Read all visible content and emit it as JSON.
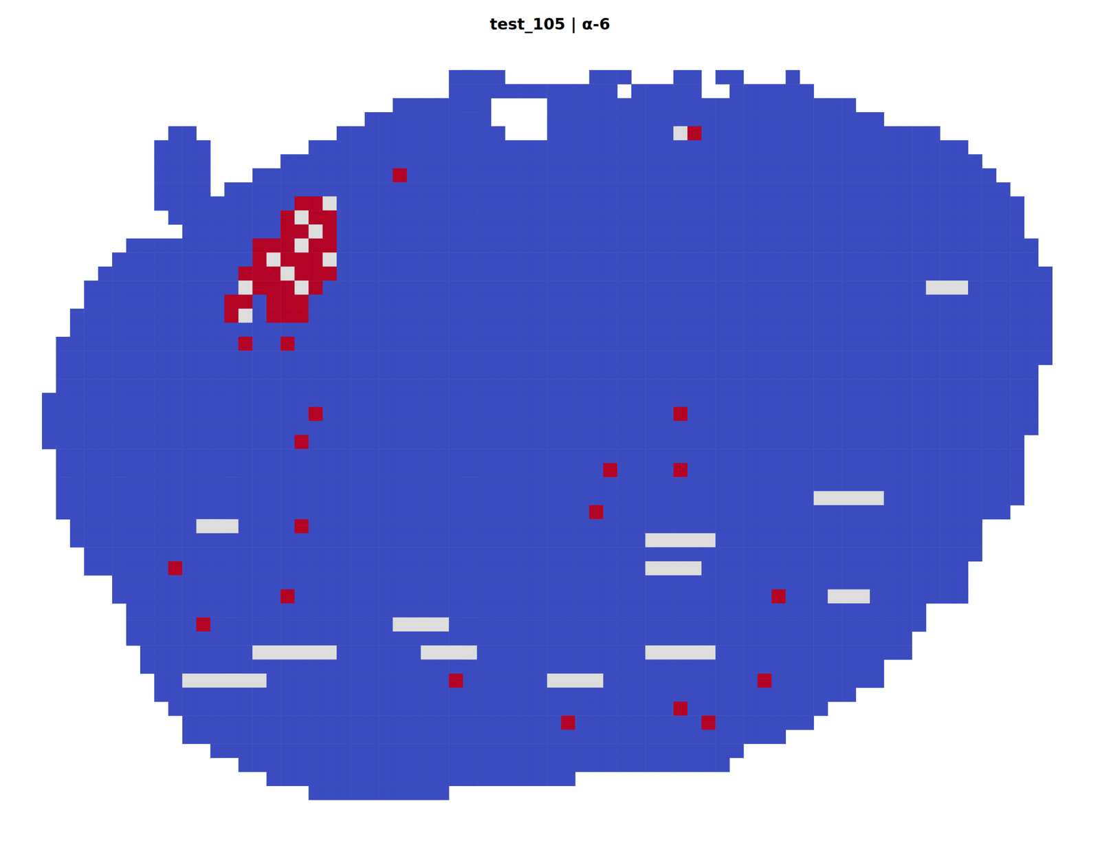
{
  "chart_data": {
    "type": "heatmap",
    "title": "test_105 | α-6",
    "xlim": [
      0,
      78
    ],
    "ylim": [
      0,
      58
    ],
    "tick_labels": false,
    "grid": false,
    "value_range": [
      0,
      1
    ],
    "tissue_spans": [
      [
        5,
        32,
        35
      ],
      [
        5,
        42,
        44
      ],
      [
        5,
        48,
        49
      ],
      [
        5,
        51,
        52
      ],
      [
        5,
        56,
        56
      ],
      [
        6,
        32,
        43
      ],
      [
        6,
        45,
        49
      ],
      [
        6,
        52,
        57
      ],
      [
        7,
        28,
        34
      ],
      [
        7,
        39,
        60
      ],
      [
        8,
        26,
        34
      ],
      [
        8,
        39,
        62
      ],
      [
        9,
        12,
        13
      ],
      [
        9,
        24,
        35
      ],
      [
        9,
        39,
        66
      ],
      [
        10,
        11,
        14
      ],
      [
        10,
        22,
        68
      ],
      [
        11,
        11,
        14
      ],
      [
        11,
        20,
        69
      ],
      [
        12,
        11,
        14
      ],
      [
        12,
        18,
        70
      ],
      [
        13,
        11,
        14
      ],
      [
        13,
        16,
        71
      ],
      [
        14,
        11,
        14
      ],
      [
        14,
        15,
        72
      ],
      [
        15,
        12,
        72
      ],
      [
        16,
        13,
        72
      ],
      [
        17,
        9,
        10
      ],
      [
        17,
        11,
        73
      ],
      [
        18,
        8,
        73
      ],
      [
        19,
        7,
        74
      ],
      [
        20,
        6,
        74
      ],
      [
        21,
        6,
        74
      ],
      [
        22,
        5,
        74
      ],
      [
        23,
        5,
        74
      ],
      [
        24,
        4,
        74
      ],
      [
        25,
        4,
        74
      ],
      [
        26,
        4,
        73
      ],
      [
        27,
        4,
        73
      ],
      [
        28,
        3,
        73
      ],
      [
        29,
        3,
        73
      ],
      [
        30,
        3,
        73
      ],
      [
        31,
        3,
        72
      ],
      [
        32,
        4,
        72
      ],
      [
        33,
        4,
        72
      ],
      [
        34,
        4,
        72
      ],
      [
        35,
        4,
        72
      ],
      [
        36,
        4,
        71
      ],
      [
        37,
        5,
        69
      ],
      [
        38,
        5,
        69
      ],
      [
        39,
        6,
        69
      ],
      [
        40,
        6,
        68
      ],
      [
        41,
        8,
        68
      ],
      [
        42,
        8,
        68
      ],
      [
        43,
        9,
        65
      ],
      [
        44,
        9,
        65
      ],
      [
        45,
        9,
        64
      ],
      [
        46,
        10,
        64
      ],
      [
        47,
        10,
        62
      ],
      [
        48,
        11,
        62
      ],
      [
        49,
        11,
        60
      ],
      [
        50,
        12,
        58
      ],
      [
        51,
        13,
        57
      ],
      [
        52,
        13,
        55
      ],
      [
        53,
        15,
        52
      ],
      [
        54,
        17,
        51
      ],
      [
        55,
        19,
        40
      ],
      [
        56,
        22,
        31
      ]
    ],
    "cells": [
      [
        21,
        14,
        1
      ],
      [
        22,
        14,
        1
      ],
      [
        23,
        14,
        0.5
      ],
      [
        20,
        15,
        1
      ],
      [
        21,
        15,
        0.5
      ],
      [
        22,
        15,
        1
      ],
      [
        23,
        15,
        1
      ],
      [
        20,
        16,
        1
      ],
      [
        21,
        16,
        1
      ],
      [
        22,
        16,
        0.5
      ],
      [
        23,
        16,
        1
      ],
      [
        18,
        17,
        1
      ],
      [
        19,
        17,
        1
      ],
      [
        20,
        17,
        1
      ],
      [
        21,
        17,
        0.5
      ],
      [
        22,
        17,
        1
      ],
      [
        23,
        17,
        1
      ],
      [
        18,
        18,
        1
      ],
      [
        19,
        18,
        0.5
      ],
      [
        20,
        18,
        1
      ],
      [
        21,
        18,
        1
      ],
      [
        22,
        18,
        1
      ],
      [
        23,
        18,
        0.5
      ],
      [
        17,
        19,
        1
      ],
      [
        18,
        19,
        1
      ],
      [
        19,
        19,
        1
      ],
      [
        20,
        19,
        0.5
      ],
      [
        21,
        19,
        1
      ],
      [
        22,
        19,
        1
      ],
      [
        23,
        19,
        1
      ],
      [
        17,
        20,
        0.5
      ],
      [
        18,
        20,
        1
      ],
      [
        19,
        20,
        1
      ],
      [
        20,
        20,
        1
      ],
      [
        21,
        20,
        0.5
      ],
      [
        22,
        20,
        1
      ],
      [
        16,
        21,
        1
      ],
      [
        17,
        21,
        1
      ],
      [
        19,
        21,
        1
      ],
      [
        20,
        21,
        1
      ],
      [
        21,
        21,
        1
      ],
      [
        16,
        22,
        1
      ],
      [
        17,
        22,
        0.5
      ],
      [
        19,
        22,
        1
      ],
      [
        20,
        22,
        1
      ],
      [
        21,
        22,
        1
      ],
      [
        17,
        24,
        1
      ],
      [
        20,
        24,
        1
      ],
      [
        28,
        12,
        1
      ],
      [
        48,
        9,
        0.5
      ],
      [
        49,
        9,
        1
      ],
      [
        48,
        29,
        1
      ],
      [
        21,
        31,
        1
      ],
      [
        22,
        29,
        1
      ],
      [
        48,
        33,
        1
      ],
      [
        43,
        33,
        1
      ],
      [
        42,
        36,
        1
      ],
      [
        14,
        44,
        1
      ],
      [
        20,
        42,
        1
      ],
      [
        21,
        37,
        1
      ],
      [
        48,
        50,
        1
      ],
      [
        50,
        51,
        1
      ],
      [
        54,
        48,
        1
      ],
      [
        55,
        42,
        1
      ],
      [
        12,
        40,
        1
      ],
      [
        32,
        48,
        1
      ],
      [
        40,
        51,
        1
      ],
      [
        14,
        37,
        0.5
      ],
      [
        15,
        37,
        0.5
      ],
      [
        16,
        37,
        0.5
      ],
      [
        46,
        38,
        0.5
      ],
      [
        47,
        38,
        0.5
      ],
      [
        48,
        38,
        0.5
      ],
      [
        49,
        38,
        0.5
      ],
      [
        50,
        38,
        0.5
      ],
      [
        46,
        40,
        0.5
      ],
      [
        47,
        40,
        0.5
      ],
      [
        48,
        40,
        0.5
      ],
      [
        49,
        40,
        0.5
      ],
      [
        46,
        46,
        0.5
      ],
      [
        47,
        46,
        0.5
      ],
      [
        48,
        46,
        0.5
      ],
      [
        49,
        46,
        0.5
      ],
      [
        50,
        46,
        0.5
      ],
      [
        30,
        46,
        0.5
      ],
      [
        31,
        46,
        0.5
      ],
      [
        32,
        46,
        0.5
      ],
      [
        33,
        46,
        0.5
      ],
      [
        28,
        44,
        0.5
      ],
      [
        29,
        44,
        0.5
      ],
      [
        30,
        44,
        0.5
      ],
      [
        31,
        44,
        0.5
      ],
      [
        39,
        48,
        0.5
      ],
      [
        40,
        48,
        0.5
      ],
      [
        41,
        48,
        0.5
      ],
      [
        42,
        48,
        0.5
      ],
      [
        13,
        48,
        0.5
      ],
      [
        14,
        48,
        0.5
      ],
      [
        15,
        48,
        0.5
      ],
      [
        16,
        48,
        0.5
      ],
      [
        17,
        48,
        0.5
      ],
      [
        18,
        48,
        0.5
      ],
      [
        18,
        46,
        0.5
      ],
      [
        19,
        46,
        0.5
      ],
      [
        20,
        46,
        0.5
      ],
      [
        21,
        46,
        0.5
      ],
      [
        22,
        46,
        0.5
      ],
      [
        23,
        46,
        0.5
      ],
      [
        58,
        35,
        0.5
      ],
      [
        59,
        35,
        0.5
      ],
      [
        60,
        35,
        0.5
      ],
      [
        61,
        35,
        0.5
      ],
      [
        62,
        35,
        0.5
      ],
      [
        59,
        42,
        0.5
      ],
      [
        60,
        42,
        0.5
      ],
      [
        61,
        42,
        0.5
      ],
      [
        66,
        20,
        0.5
      ],
      [
        67,
        20,
        0.5
      ],
      [
        68,
        20,
        0.5
      ]
    ]
  }
}
